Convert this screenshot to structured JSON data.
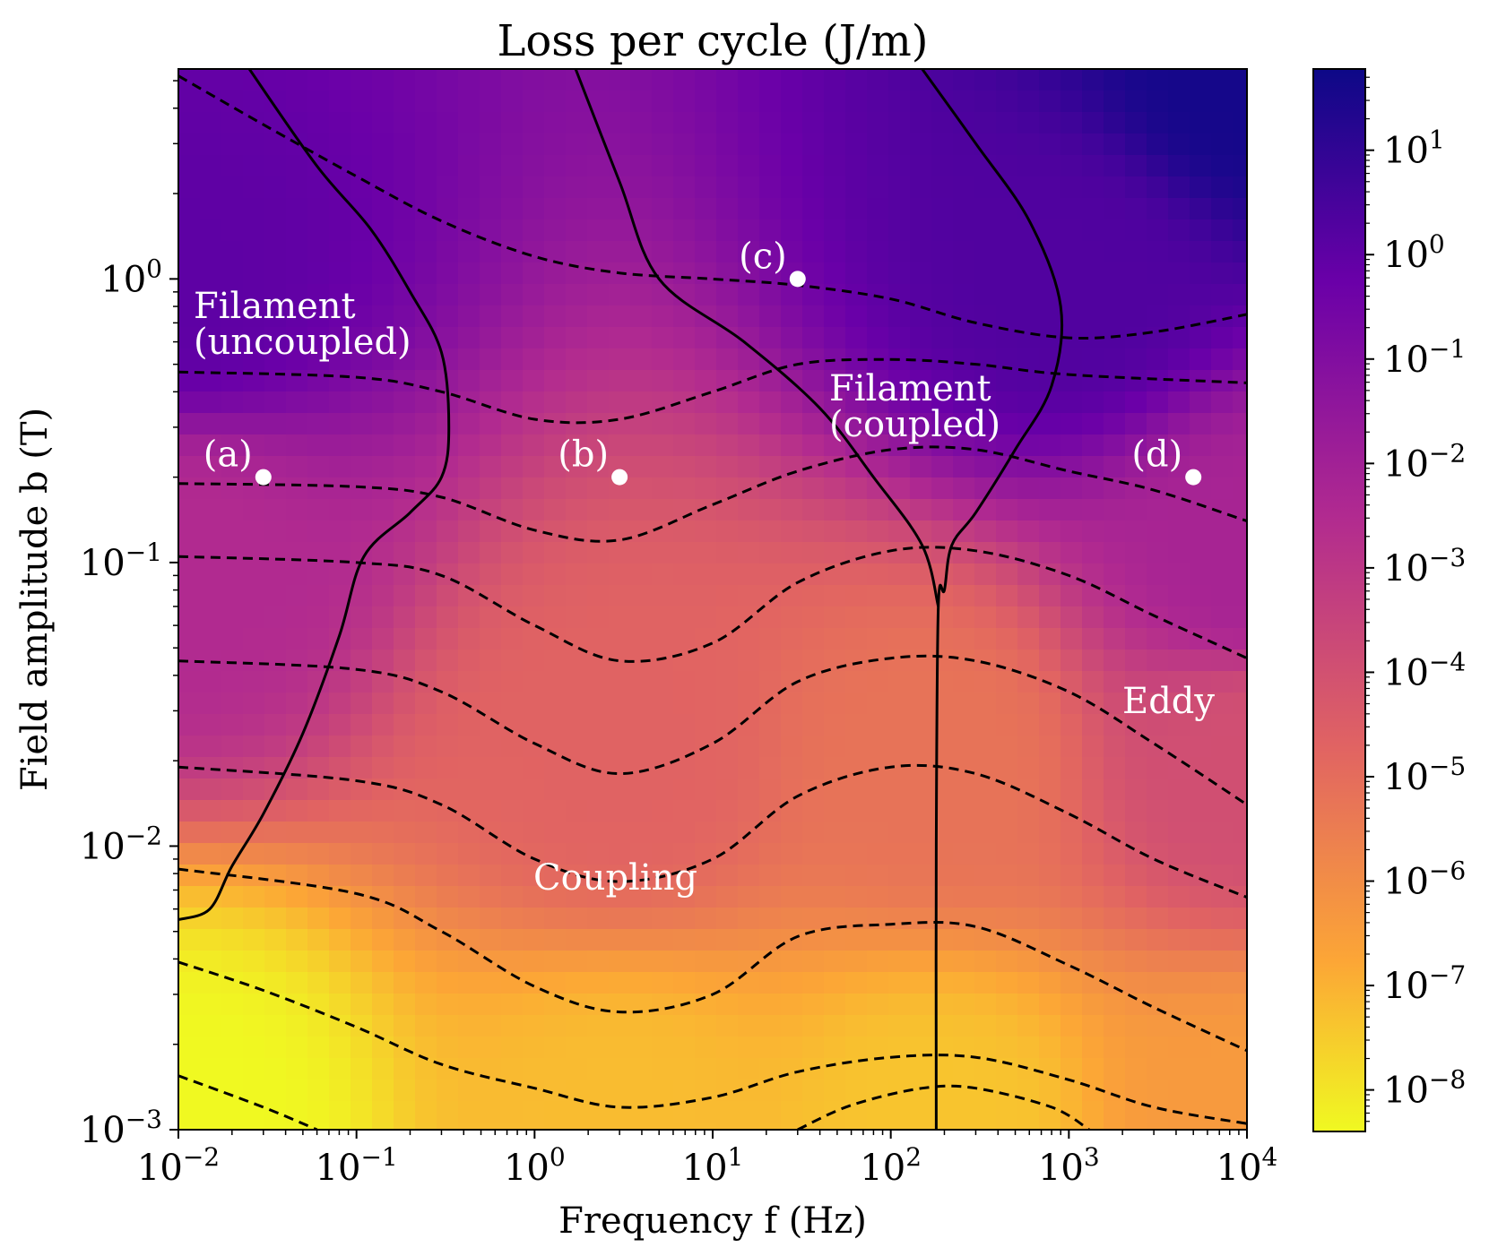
{
  "chart_data": {
    "type": "heatmap",
    "title": "Loss per cycle (J/m)",
    "xlabel": "Frequency f (Hz)",
    "ylabel": "Field amplitude b (T)",
    "x_scale": "log",
    "y_scale": "log",
    "xlim": [
      0.01,
      10000
    ],
    "ylim": [
      0.001,
      5.5
    ],
    "x_ticks": [
      {
        "value": 0.01,
        "base": "10",
        "exp": "−2"
      },
      {
        "value": 0.1,
        "base": "10",
        "exp": "−1"
      },
      {
        "value": 1,
        "base": "10",
        "exp": "0"
      },
      {
        "value": 10,
        "base": "10",
        "exp": "1"
      },
      {
        "value": 100,
        "base": "10",
        "exp": "2"
      },
      {
        "value": 1000,
        "base": "10",
        "exp": "3"
      },
      {
        "value": 10000,
        "base": "10",
        "exp": "4"
      }
    ],
    "y_ticks": [
      {
        "value": 0.001,
        "base": "10",
        "exp": "−3"
      },
      {
        "value": 0.01,
        "base": "10",
        "exp": "−2"
      },
      {
        "value": 0.1,
        "base": "10",
        "exp": "−1"
      },
      {
        "value": 1,
        "base": "10",
        "exp": "0"
      }
    ],
    "colorbar": {
      "scale": "log",
      "range": [
        4e-09,
        60
      ],
      "colormap": [
        "#f0f921",
        "#fca636",
        "#e16462",
        "#b12a90",
        "#6a00a8",
        "#0d0887"
      ],
      "ticks": [
        {
          "value": 1e-08,
          "base": "10",
          "exp": "−8"
        },
        {
          "value": 1e-07,
          "base": "10",
          "exp": "−7"
        },
        {
          "value": 1e-06,
          "base": "10",
          "exp": "−6"
        },
        {
          "value": 1e-05,
          "base": "10",
          "exp": "−5"
        },
        {
          "value": 0.0001,
          "base": "10",
          "exp": "−4"
        },
        {
          "value": 0.001,
          "base": "10",
          "exp": "−3"
        },
        {
          "value": 0.01,
          "base": "10",
          "exp": "−2"
        },
        {
          "value": 0.1,
          "base": "10",
          "exp": "−1"
        },
        {
          "value": 1,
          "base": "10",
          "exp": "0"
        },
        {
          "value": 10,
          "base": "10",
          "exp": "1"
        }
      ]
    },
    "loss_field": {
      "color_anchors": [
        {
          "f": 0.01,
          "b": 0.001,
          "log10_loss": -8.4
        },
        {
          "f": 3,
          "b": 0.001,
          "log10_loss": -6.9
        },
        {
          "f": 180,
          "b": 0.001,
          "log10_loss": -7.1
        },
        {
          "f": 10000,
          "b": 0.001,
          "log10_loss": -6.0
        },
        {
          "f": 3,
          "b": 0.02,
          "log10_loss": -4.3
        },
        {
          "f": 180,
          "b": 0.02,
          "log10_loss": -4.8
        },
        {
          "f": 10000,
          "b": 0.02,
          "log10_loss": -3.6
        },
        {
          "f": 0.01,
          "b": 0.1,
          "log10_loss": -2.3
        },
        {
          "f": 10000,
          "b": 0.1,
          "log10_loss": -2.0
        },
        {
          "f": 0.01,
          "b": 1,
          "log10_loss": 0.0
        },
        {
          "f": 1000,
          "b": 1,
          "log10_loss": 0.3
        },
        {
          "f": 10000,
          "b": 5.5,
          "log10_loss": 1.6
        }
      ]
    },
    "contour_lines": [
      {
        "name": "loss-contour",
        "points": [
          [
            0.01,
            5.2
          ],
          [
            0.03,
            3.5
          ],
          [
            0.1,
            2.3
          ],
          [
            0.3,
            1.6
          ],
          [
            1,
            1.2
          ],
          [
            3,
            1.05
          ],
          [
            10,
            1.0
          ],
          [
            30,
            0.95
          ],
          [
            100,
            0.85
          ],
          [
            300,
            0.7
          ],
          [
            1000,
            0.62
          ],
          [
            3000,
            0.65
          ],
          [
            10000,
            0.75
          ]
        ]
      },
      {
        "name": "loss-contour",
        "points": [
          [
            0.01,
            0.47
          ],
          [
            0.1,
            0.45
          ],
          [
            0.3,
            0.4
          ],
          [
            1,
            0.32
          ],
          [
            3,
            0.32
          ],
          [
            10,
            0.4
          ],
          [
            30,
            0.5
          ],
          [
            100,
            0.52
          ],
          [
            300,
            0.5
          ],
          [
            1000,
            0.46
          ],
          [
            10000,
            0.43
          ]
        ]
      },
      {
        "name": "loss-contour",
        "points": [
          [
            0.01,
            0.19
          ],
          [
            0.1,
            0.185
          ],
          [
            0.3,
            0.17
          ],
          [
            1,
            0.13
          ],
          [
            3,
            0.12
          ],
          [
            10,
            0.16
          ],
          [
            30,
            0.21
          ],
          [
            100,
            0.25
          ],
          [
            300,
            0.25
          ],
          [
            1000,
            0.21
          ],
          [
            3000,
            0.18
          ],
          [
            10000,
            0.14
          ]
        ]
      },
      {
        "name": "loss-contour",
        "points": [
          [
            0.01,
            0.105
          ],
          [
            0.1,
            0.1
          ],
          [
            0.3,
            0.09
          ],
          [
            1,
            0.06
          ],
          [
            3,
            0.045
          ],
          [
            10,
            0.052
          ],
          [
            30,
            0.085
          ],
          [
            100,
            0.11
          ],
          [
            300,
            0.11
          ],
          [
            1000,
            0.09
          ],
          [
            3000,
            0.065
          ],
          [
            10000,
            0.046
          ]
        ]
      },
      {
        "name": "loss-contour",
        "points": [
          [
            0.01,
            0.045
          ],
          [
            0.1,
            0.042
          ],
          [
            0.3,
            0.035
          ],
          [
            1,
            0.023
          ],
          [
            3,
            0.018
          ],
          [
            10,
            0.023
          ],
          [
            30,
            0.038
          ],
          [
            100,
            0.046
          ],
          [
            300,
            0.045
          ],
          [
            1000,
            0.035
          ],
          [
            3000,
            0.023
          ],
          [
            10000,
            0.014
          ]
        ]
      },
      {
        "name": "loss-contour",
        "points": [
          [
            0.01,
            0.019
          ],
          [
            0.1,
            0.017
          ],
          [
            0.3,
            0.014
          ],
          [
            1,
            0.009
          ],
          [
            3,
            0.0075
          ],
          [
            10,
            0.009
          ],
          [
            30,
            0.015
          ],
          [
            100,
            0.019
          ],
          [
            300,
            0.018
          ],
          [
            1000,
            0.013
          ],
          [
            3000,
            0.009
          ],
          [
            10000,
            0.0066
          ]
        ]
      },
      {
        "name": "loss-contour",
        "points": [
          [
            0.01,
            0.0083
          ],
          [
            0.1,
            0.0068
          ],
          [
            0.3,
            0.005
          ],
          [
            1,
            0.0032
          ],
          [
            3,
            0.0026
          ],
          [
            10,
            0.003
          ],
          [
            30,
            0.0048
          ],
          [
            100,
            0.0053
          ],
          [
            300,
            0.0052
          ],
          [
            1000,
            0.0038
          ],
          [
            3000,
            0.0027
          ],
          [
            10000,
            0.0019
          ]
        ]
      },
      {
        "name": "loss-contour",
        "points": [
          [
            0.01,
            0.0039
          ],
          [
            0.03,
            0.0031
          ],
          [
            0.1,
            0.0023
          ],
          [
            0.3,
            0.0017
          ],
          [
            1,
            0.0014
          ],
          [
            3,
            0.0012
          ],
          [
            10,
            0.0013
          ],
          [
            30,
            0.0016
          ],
          [
            100,
            0.0018
          ],
          [
            300,
            0.0018
          ],
          [
            1000,
            0.0015
          ],
          [
            3000,
            0.0012
          ],
          [
            10000,
            0.00105
          ]
        ]
      },
      {
        "name": "loss-contour",
        "points": [
          [
            0.01,
            0.00155
          ],
          [
            0.03,
            0.0012
          ],
          [
            0.06,
            0.001
          ]
        ]
      },
      {
        "name": "loss-contour",
        "points": [
          [
            30,
            0.001
          ],
          [
            60,
            0.00122
          ],
          [
            150,
            0.0014
          ],
          [
            300,
            0.0014
          ],
          [
            800,
            0.0012
          ],
          [
            1300,
            0.001
          ]
        ]
      }
    ],
    "boundary_lines": [
      {
        "name": "boundary-filament-uncoupled",
        "points": [
          [
            0.025,
            5.5
          ],
          [
            0.06,
            2.5
          ],
          [
            0.12,
            1.5
          ],
          [
            0.2,
            0.9
          ],
          [
            0.3,
            0.55
          ],
          [
            0.33,
            0.3
          ],
          [
            0.3,
            0.2
          ],
          [
            0.2,
            0.15
          ],
          [
            0.11,
            0.105
          ],
          [
            0.08,
            0.055
          ],
          [
            0.05,
            0.025
          ],
          [
            0.03,
            0.013
          ],
          [
            0.02,
            0.0085
          ],
          [
            0.015,
            0.006
          ],
          [
            0.01,
            0.0055
          ]
        ]
      },
      {
        "name": "boundary-coupling",
        "points": [
          [
            1.7,
            5.5
          ],
          [
            3,
            2.2
          ],
          [
            5,
            1.0
          ],
          [
            15,
            0.6
          ],
          [
            40,
            0.35
          ],
          [
            80,
            0.2
          ],
          [
            150,
            0.115
          ],
          [
            185,
            0.07
          ]
        ]
      },
      {
        "name": "boundary-eddy",
        "points": [
          [
            150,
            5.5
          ],
          [
            300,
            3.0
          ],
          [
            600,
            1.6
          ],
          [
            900,
            0.8
          ],
          [
            800,
            0.42
          ],
          [
            500,
            0.25
          ],
          [
            300,
            0.15
          ],
          [
            220,
            0.115
          ],
          [
            200,
            0.08
          ],
          [
            185,
            0.07
          ],
          [
            180,
            0.01
          ],
          [
            180,
            0.001
          ]
        ]
      }
    ],
    "points": [
      {
        "label": "(a)",
        "f": 0.03,
        "b": 0.2
      },
      {
        "label": "(b)",
        "f": 3,
        "b": 0.2
      },
      {
        "label": "(c)",
        "f": 30,
        "b": 1.0
      },
      {
        "label": "(d)",
        "f": 5000,
        "b": 0.2
      }
    ],
    "annotations": {
      "filament_uncoupled_line1": "Filament",
      "filament_uncoupled_line2": "(uncoupled)",
      "filament_coupled_line1": "Filament",
      "filament_coupled_line2": "(coupled)",
      "coupling": "Coupling",
      "eddy": "Eddy"
    }
  }
}
